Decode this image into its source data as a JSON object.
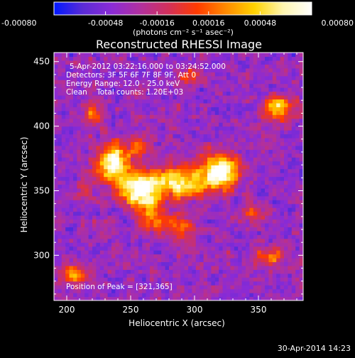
{
  "colorbar": {
    "tick_labels": [
      "-0.00080",
      "-0.00048",
      "-0.00016",
      "0.00016",
      "0.00048",
      "0.00080"
    ],
    "range": [
      -0.0008,
      0.0008
    ],
    "units_label": "(photons cm⁻² s⁻¹ asec⁻²)"
  },
  "colors": {
    "stops": [
      "#0018ff",
      "#5a2bd6",
      "#8a2bd6",
      "#b0309f",
      "#d2305a",
      "#ff3b00",
      "#ff8a00",
      "#ffd200",
      "#fff6b0",
      "#ffffff"
    ],
    "background": "#000000",
    "text": "#ffffff"
  },
  "chart_data": {
    "type": "heatmap",
    "title": "Reconstructed RHESSI Image",
    "xlabel": "Heliocentric X (arcsec)",
    "ylabel": "Heliocentric Y (arcsec)",
    "xlim": [
      190,
      385
    ],
    "ylim": [
      265,
      457
    ],
    "x_ticks": [
      200,
      250,
      300,
      350
    ],
    "y_ticks": [
      300,
      350,
      400,
      450
    ],
    "info_lines": [
      "5-Apr-2012 03:22:16.000 to 03:24:52.000",
      "Detectors: 3F 5F 6F 7F 8F 9F, Att 0",
      "Energy Range: 12.0 - 25.0 keV",
      "Clean    Total counts: 1.20E+03"
    ],
    "peak_label": "Position of Peak = [321,365]",
    "peak": [
      321,
      365
    ],
    "sources": [
      {
        "x": 236,
        "y": 372,
        "sx": 9,
        "sy": 10,
        "amp": 0.95
      },
      {
        "x": 255,
        "y": 350,
        "sx": 10,
        "sy": 9,
        "amp": 0.85
      },
      {
        "x": 285,
        "y": 357,
        "sx": 18,
        "sy": 9,
        "amp": 0.8
      },
      {
        "x": 321,
        "y": 365,
        "sx": 10,
        "sy": 9,
        "amp": 1.0
      },
      {
        "x": 268,
        "y": 330,
        "sx": 8,
        "sy": 9,
        "amp": 0.55
      },
      {
        "x": 290,
        "y": 322,
        "sx": 7,
        "sy": 8,
        "amp": 0.45
      },
      {
        "x": 258,
        "y": 385,
        "sx": 6,
        "sy": 6,
        "amp": 0.45
      },
      {
        "x": 365,
        "y": 415,
        "sx": 8,
        "sy": 6,
        "amp": 0.75
      },
      {
        "x": 220,
        "y": 410,
        "sx": 5,
        "sy": 5,
        "amp": 0.45
      },
      {
        "x": 205,
        "y": 285,
        "sx": 9,
        "sy": 5,
        "amp": 0.55
      },
      {
        "x": 360,
        "y": 300,
        "sx": 9,
        "sy": 5,
        "amp": 0.45
      },
      {
        "x": 295,
        "y": 440,
        "sx": 7,
        "sy": 5,
        "amp": 0.3
      },
      {
        "x": 215,
        "y": 350,
        "sx": 5,
        "sy": 6,
        "amp": 0.3
      },
      {
        "x": 345,
        "y": 335,
        "sx": 5,
        "sy": 5,
        "amp": 0.35
      }
    ]
  },
  "footer": {
    "timestamp": "30-Apr-2014 14:23"
  }
}
